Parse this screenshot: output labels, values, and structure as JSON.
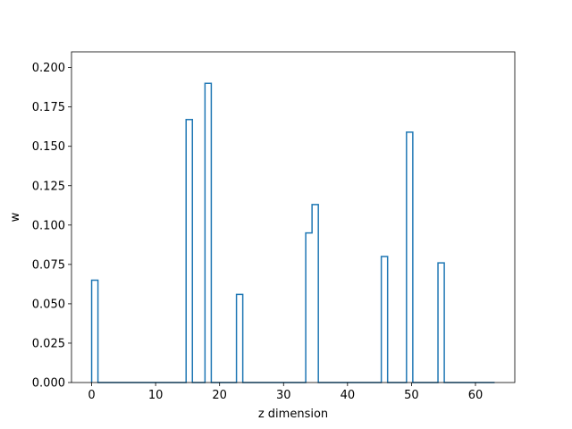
{
  "chart_data": {
    "type": "line",
    "style": "step-histogram",
    "title": "",
    "xlabel": "z dimension",
    "ylabel": "w",
    "xlim": [
      -3.15,
      66.15
    ],
    "ylim": [
      0,
      0.21
    ],
    "xticks": [
      0,
      10,
      20,
      30,
      40,
      50,
      60
    ],
    "xtick_labels": [
      "0",
      "10",
      "20",
      "30",
      "40",
      "50",
      "60"
    ],
    "yticks": [
      0,
      0.025,
      0.05,
      0.075,
      0.1,
      0.125,
      0.15,
      0.175,
      0.2
    ],
    "ytick_labels": [
      "0.000",
      "0.025",
      "0.050",
      "0.075",
      "0.100",
      "0.125",
      "0.150",
      "0.175",
      "0.200"
    ],
    "grid": false,
    "line_color": "#1f77b4",
    "series": [
      {
        "bin_edges_start": 0,
        "bin_width": 0.984375,
        "values": [
          0.065,
          0,
          0,
          0,
          0,
          0,
          0,
          0,
          0,
          0,
          0,
          0,
          0,
          0,
          0,
          0.167,
          0,
          0,
          0.19,
          0,
          0,
          0,
          0,
          0.056,
          0,
          0,
          0,
          0,
          0,
          0,
          0,
          0,
          0,
          0,
          0.095,
          0.113,
          0,
          0,
          0,
          0,
          0,
          0,
          0,
          0,
          0,
          0,
          0.08,
          0,
          0,
          0,
          0.159,
          0,
          0,
          0,
          0,
          0.076,
          0,
          0,
          0,
          0,
          0,
          0,
          0,
          0
        ]
      }
    ]
  }
}
